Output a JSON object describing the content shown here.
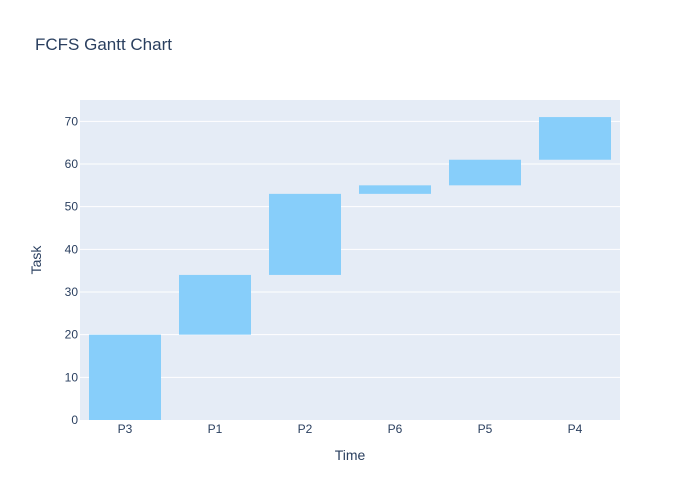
{
  "chart_data": {
    "type": "bar",
    "title": "FCFS Gantt Chart",
    "xlabel": "Time",
    "ylabel": "Task",
    "categories": [
      "P3",
      "P1",
      "P2",
      "P6",
      "P5",
      "P4"
    ],
    "bars": [
      {
        "base": 0,
        "top": 20
      },
      {
        "base": 20,
        "top": 34
      },
      {
        "base": 34,
        "top": 53
      },
      {
        "base": 53,
        "top": 55
      },
      {
        "base": 55,
        "top": 61
      },
      {
        "base": 61,
        "top": 71
      }
    ],
    "ylim": [
      0,
      75
    ],
    "yticks": [
      0,
      10,
      20,
      30,
      40,
      50,
      60,
      70
    ],
    "grid": true,
    "colors": {
      "bar": "#87cefa",
      "plot_bg": "#e5ecf6",
      "grid": "#ffffff",
      "text": "#2a3f5f"
    }
  }
}
